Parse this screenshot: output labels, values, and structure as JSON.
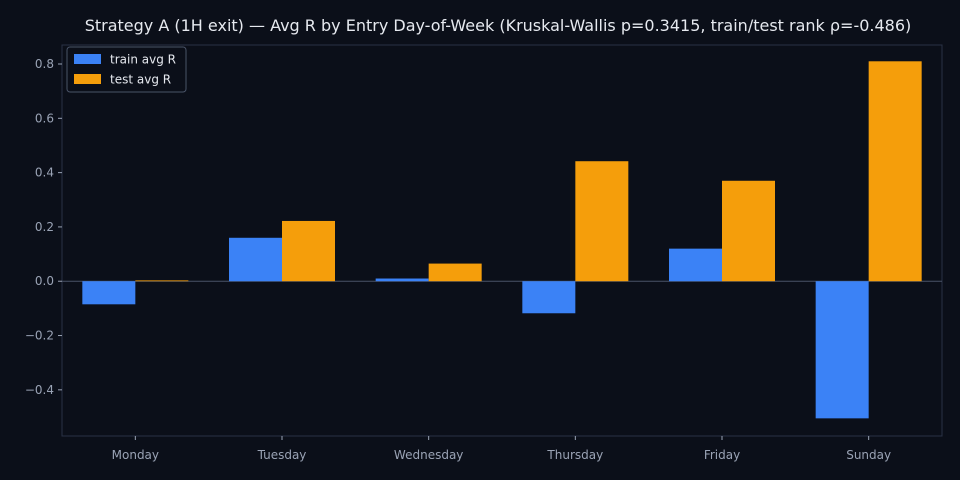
{
  "chart_data": {
    "type": "bar",
    "title": "Strategy A (1H exit) — Avg R by Entry Day-of-Week (Kruskal-Wallis p=0.3415, train/test rank ρ=-0.486)",
    "xlabel": "",
    "ylabel": "",
    "categories": [
      "Monday",
      "Tuesday",
      "Wednesday",
      "Thursday",
      "Friday",
      "Sunday"
    ],
    "series": [
      {
        "name": "train avg R",
        "color": "#3b82f6",
        "values": [
          -0.085,
          0.16,
          0.01,
          -0.118,
          0.12,
          -0.505
        ]
      },
      {
        "name": "test avg R",
        "color": "#f59e0b",
        "values": [
          0.003,
          0.222,
          0.065,
          0.442,
          0.37,
          0.81
        ]
      }
    ],
    "ylim": [
      -0.57,
      0.87
    ],
    "yticks": [
      -0.4,
      -0.2,
      0.0,
      0.2,
      0.4,
      0.6,
      0.8
    ],
    "ytick_labels": [
      "−0.4",
      "−0.2",
      "0.0",
      "0.2",
      "0.4",
      "0.6",
      "0.8"
    ],
    "grid": false,
    "zero_line": true,
    "legend_position": "top-left",
    "colors": {
      "background": "#0b0f19",
      "axis": "#2a3245",
      "zero_line": "#4a5468",
      "text": "#e6e9ef",
      "tick_text": "#9aa3b5"
    }
  }
}
